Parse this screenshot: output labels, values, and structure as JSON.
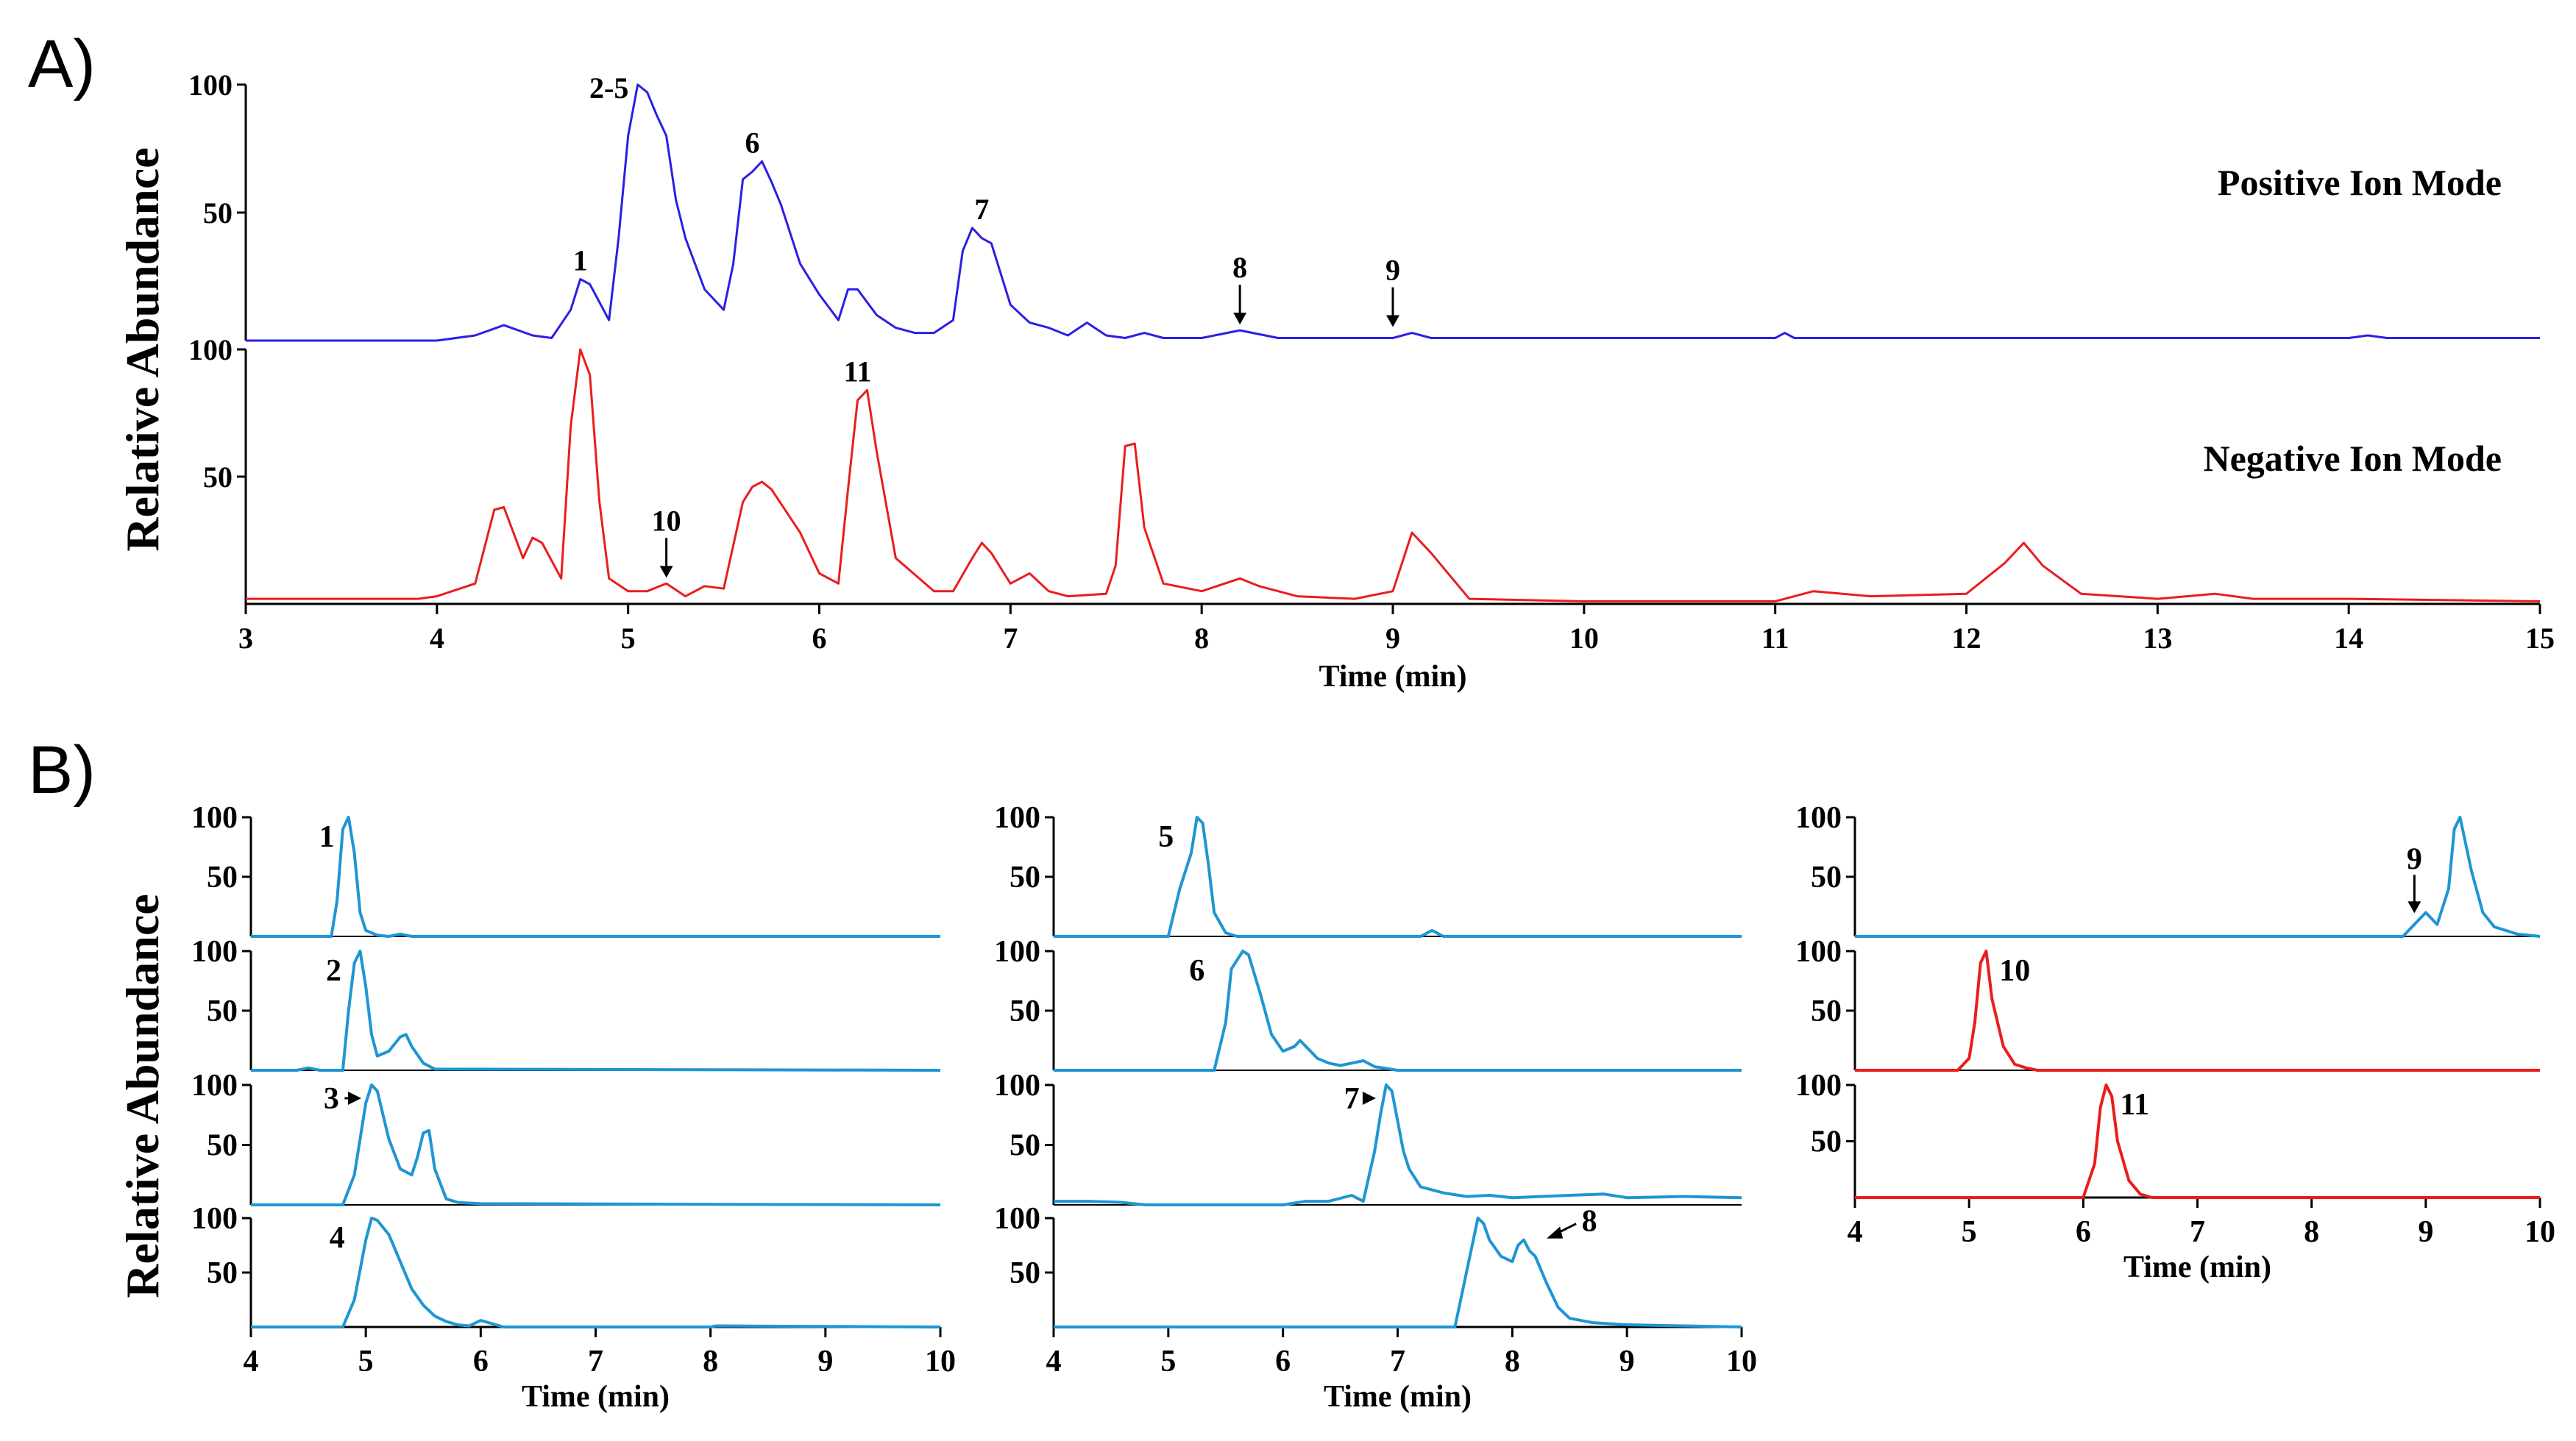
{
  "figure": {
    "panel_a_label": "A)",
    "panel_b_label": "B)",
    "ylabel_a": "Relative Abundance",
    "ylabel_b": "Relative Abundance"
  },
  "colors": {
    "positive": "#2b1fe6",
    "negative": "#ea1d1d",
    "eic_blue": "#1e96d3",
    "eic_red": "#ea1d1d",
    "axis": "#000000"
  },
  "chart_data": [
    {
      "id": "A-positive",
      "type": "line",
      "title": "Positive Ion Mode",
      "xlabel": "Time (min)",
      "ylabel": "Relative Abundance",
      "xlim": [
        3,
        15
      ],
      "ylim": [
        0,
        100
      ],
      "yticks": [
        "100",
        "50"
      ],
      "color": "positive",
      "series": [
        {
          "name": "Positive Ion Mode",
          "x": [
            3.0,
            3.5,
            4.0,
            4.2,
            4.35,
            4.5,
            4.6,
            4.7,
            4.75,
            4.8,
            4.9,
            4.95,
            5.0,
            5.05,
            5.1,
            5.15,
            5.2,
            5.25,
            5.3,
            5.4,
            5.5,
            5.55,
            5.6,
            5.65,
            5.7,
            5.75,
            5.8,
            5.9,
            6.0,
            6.1,
            6.15,
            6.2,
            6.3,
            6.4,
            6.5,
            6.6,
            6.7,
            6.75,
            6.8,
            6.85,
            6.9,
            7.0,
            7.1,
            7.2,
            7.3,
            7.4,
            7.5,
            7.6,
            7.7,
            7.8,
            8.0,
            8.2,
            8.4,
            9.0,
            9.1,
            9.2,
            10.0,
            11.0,
            11.05,
            11.1,
            12.0,
            14.0,
            14.1,
            14.2,
            14.5,
            15.0
          ],
          "y": [
            0,
            0,
            0,
            2,
            6,
            2,
            1,
            12,
            24,
            22,
            8,
            40,
            80,
            100,
            97,
            88,
            80,
            55,
            40,
            20,
            12,
            30,
            63,
            66,
            70,
            62,
            53,
            30,
            18,
            8,
            20,
            20,
            10,
            5,
            3,
            3,
            8,
            35,
            44,
            40,
            38,
            14,
            7,
            5,
            2,
            7,
            2,
            1,
            3,
            1,
            1,
            4,
            1,
            1,
            3,
            1,
            1,
            1,
            3,
            1,
            1,
            1,
            2,
            1,
            1,
            1
          ]
        }
      ],
      "annotations": [
        {
          "text": "1",
          "x": 4.75
        },
        {
          "text": "2-5",
          "x": 4.87
        },
        {
          "text": "6",
          "x": 5.65
        },
        {
          "text": "7",
          "x": 6.85
        },
        {
          "text": "8",
          "x": 8.2,
          "arrow": true
        },
        {
          "text": "9",
          "x": 9.0,
          "arrow": true
        }
      ]
    },
    {
      "id": "A-negative",
      "type": "line",
      "title": "Negative Ion Mode",
      "xlabel": "Time (min)",
      "ylabel": "Relative Abundance",
      "xlim": [
        3,
        15
      ],
      "ylim": [
        0,
        100
      ],
      "yticks": [
        "100",
        "50"
      ],
      "xticks": [
        3,
        4,
        5,
        6,
        7,
        8,
        9,
        10,
        11,
        12,
        13,
        14,
        15
      ],
      "color": "negative",
      "series": [
        {
          "name": "Negative Ion Mode",
          "x": [
            3.0,
            3.5,
            3.9,
            4.0,
            4.2,
            4.3,
            4.35,
            4.45,
            4.5,
            4.55,
            4.65,
            4.7,
            4.75,
            4.8,
            4.85,
            4.9,
            5.0,
            5.1,
            5.2,
            5.3,
            5.4,
            5.5,
            5.6,
            5.65,
            5.7,
            5.75,
            5.9,
            6.0,
            6.1,
            6.15,
            6.2,
            6.25,
            6.3,
            6.4,
            6.6,
            6.7,
            6.8,
            6.85,
            6.9,
            7.0,
            7.1,
            7.2,
            7.3,
            7.5,
            7.55,
            7.6,
            7.65,
            7.7,
            7.8,
            8.0,
            8.2,
            8.3,
            8.5,
            8.8,
            9.0,
            9.1,
            9.2,
            9.4,
            10.0,
            11.0,
            11.2,
            11.5,
            12.0,
            12.2,
            12.3,
            12.4,
            12.6,
            13.0,
            13.3,
            13.5,
            14.0,
            15.0
          ],
          "y": [
            2,
            2,
            2,
            3,
            8,
            37,
            38,
            18,
            26,
            24,
            10,
            70,
            100,
            90,
            40,
            10,
            5,
            5,
            8,
            3,
            7,
            6,
            40,
            46,
            48,
            45,
            28,
            12,
            8,
            45,
            80,
            84,
            60,
            18,
            5,
            5,
            18,
            24,
            20,
            8,
            12,
            5,
            3,
            4,
            15,
            62,
            63,
            30,
            8,
            5,
            10,
            7,
            3,
            2,
            5,
            28,
            20,
            2,
            1,
            1,
            5,
            3,
            4,
            16,
            24,
            15,
            4,
            2,
            4,
            2,
            2,
            1
          ]
        }
      ],
      "annotations": [
        {
          "text": "10",
          "x": 5.2,
          "arrow": true
        },
        {
          "text": "11",
          "x": 6.2
        }
      ]
    },
    {
      "id": "B-1",
      "type": "line",
      "xlim": [
        4,
        10
      ],
      "ylim": [
        0,
        100
      ],
      "yticks": [
        "100",
        "50"
      ],
      "color": "eic_blue",
      "series": [
        {
          "name": "1",
          "x": [
            4.0,
            4.5,
            4.7,
            4.75,
            4.8,
            4.85,
            4.9,
            4.95,
            5.0,
            5.1,
            5.2,
            5.3,
            5.35,
            5.4,
            10.0
          ],
          "y": [
            0,
            0,
            0,
            30,
            90,
            100,
            70,
            20,
            5,
            1,
            0,
            2,
            1,
            0,
            0
          ]
        }
      ],
      "annotations": [
        {
          "text": "1",
          "x": 4.66
        }
      ]
    },
    {
      "id": "B-2",
      "type": "line",
      "xlim": [
        4,
        10
      ],
      "ylim": [
        0,
        100
      ],
      "yticks": [
        "100",
        "50"
      ],
      "color": "eic_blue",
      "series": [
        {
          "name": "2",
          "x": [
            4.0,
            4.4,
            4.5,
            4.6,
            4.8,
            4.85,
            4.9,
            4.95,
            5.0,
            5.05,
            5.1,
            5.2,
            5.3,
            5.35,
            5.4,
            5.5,
            5.6,
            10.0
          ],
          "y": [
            0,
            0,
            2,
            0,
            0,
            50,
            90,
            100,
            70,
            30,
            12,
            16,
            28,
            30,
            20,
            6,
            1,
            0
          ]
        }
      ],
      "annotations": [
        {
          "text": "2",
          "x": 4.72
        }
      ]
    },
    {
      "id": "B-3",
      "type": "line",
      "xlim": [
        4,
        10
      ],
      "ylim": [
        0,
        100
      ],
      "yticks": [
        "100",
        "50"
      ],
      "color": "eic_blue",
      "series": [
        {
          "name": "3",
          "x": [
            4.0,
            4.8,
            4.9,
            5.0,
            5.05,
            5.1,
            5.15,
            5.2,
            5.3,
            5.4,
            5.45,
            5.5,
            5.55,
            5.6,
            5.7,
            5.8,
            6.0,
            10.0
          ],
          "y": [
            0,
            0,
            25,
            85,
            100,
            95,
            75,
            55,
            30,
            25,
            40,
            60,
            62,
            30,
            5,
            2,
            1,
            0
          ]
        }
      ],
      "annotations": [
        {
          "text": "3",
          "x": 4.7,
          "arrow": true
        }
      ]
    },
    {
      "id": "B-4",
      "type": "line",
      "xlim": [
        4,
        10
      ],
      "ylim": [
        0,
        100
      ],
      "yticks": [
        "100",
        "50"
      ],
      "color": "eic_blue",
      "xticks": [
        4,
        5,
        6,
        7,
        8,
        9,
        10
      ],
      "xlabel": "Time (min)",
      "series": [
        {
          "name": "4",
          "x": [
            4.0,
            4.8,
            4.9,
            5.0,
            5.05,
            5.1,
            5.2,
            5.3,
            5.4,
            5.5,
            5.6,
            5.7,
            5.8,
            5.9,
            6.0,
            6.1,
            6.2,
            8.0,
            8.05,
            10.0
          ],
          "y": [
            0,
            0,
            25,
            80,
            100,
            98,
            85,
            60,
            35,
            20,
            10,
            5,
            2,
            1,
            6,
            3,
            0,
            0,
            1,
            0
          ]
        }
      ],
      "annotations": [
        {
          "text": "4",
          "x": 4.75
        }
      ]
    },
    {
      "id": "B-5",
      "type": "line",
      "xlim": [
        4,
        10
      ],
      "ylim": [
        0,
        100
      ],
      "yticks": [
        "100",
        "50"
      ],
      "color": "eic_blue",
      "series": [
        {
          "name": "5",
          "x": [
            4.0,
            5.0,
            5.05,
            5.1,
            5.2,
            5.25,
            5.3,
            5.35,
            5.4,
            5.5,
            5.6,
            7.2,
            7.3,
            7.4,
            10.0
          ],
          "y": [
            0,
            0,
            20,
            40,
            70,
            100,
            95,
            60,
            20,
            3,
            0,
            0,
            5,
            0,
            0
          ]
        }
      ],
      "annotations": [
        {
          "text": "5",
          "x": 4.98
        }
      ]
    },
    {
      "id": "B-6",
      "type": "line",
      "xlim": [
        4,
        10
      ],
      "ylim": [
        0,
        100
      ],
      "yticks": [
        "100",
        "50"
      ],
      "color": "eic_blue",
      "series": [
        {
          "name": "6",
          "x": [
            4.0,
            5.4,
            5.5,
            5.55,
            5.65,
            5.7,
            5.8,
            5.9,
            6.0,
            6.1,
            6.15,
            6.2,
            6.3,
            6.4,
            6.5,
            6.6,
            6.7,
            6.8,
            7.0,
            10.0
          ],
          "y": [
            0,
            0,
            40,
            85,
            100,
            97,
            65,
            30,
            16,
            20,
            25,
            20,
            10,
            6,
            4,
            6,
            8,
            3,
            0,
            0
          ]
        }
      ],
      "annotations": [
        {
          "text": "6",
          "x": 5.25
        }
      ]
    },
    {
      "id": "B-7",
      "type": "line",
      "xlim": [
        4,
        10
      ],
      "ylim": [
        0,
        100
      ],
      "yticks": [
        "100",
        "50"
      ],
      "color": "eic_blue",
      "series": [
        {
          "name": "7",
          "x": [
            4.0,
            4.3,
            4.6,
            4.8,
            5.0,
            6.0,
            6.2,
            6.4,
            6.6,
            6.7,
            6.8,
            6.85,
            6.9,
            6.95,
            7.0,
            7.05,
            7.1,
            7.2,
            7.4,
            7.6,
            7.8,
            8.0,
            8.5,
            8.8,
            9.0,
            9.5,
            10.0
          ],
          "y": [
            3,
            3,
            2,
            0,
            0,
            0,
            3,
            3,
            8,
            3,
            45,
            75,
            100,
            95,
            70,
            45,
            30,
            15,
            10,
            7,
            8,
            6,
            8,
            9,
            6,
            7,
            6
          ]
        }
      ],
      "annotations": [
        {
          "text": "7",
          "x": 6.6,
          "arrow": true
        }
      ]
    },
    {
      "id": "B-8",
      "type": "line",
      "xlim": [
        4,
        10
      ],
      "ylim": [
        0,
        100
      ],
      "yticks": [
        "100",
        "50"
      ],
      "color": "eic_blue",
      "xticks": [
        4,
        5,
        6,
        7,
        8,
        9,
        10
      ],
      "xlabel": "Time (min)",
      "series": [
        {
          "name": "8",
          "x": [
            4.0,
            7.5,
            7.6,
            7.7,
            7.75,
            7.8,
            7.9,
            8.0,
            8.05,
            8.1,
            8.15,
            8.2,
            8.3,
            8.4,
            8.5,
            8.7,
            9.0,
            9.5,
            10.0
          ],
          "y": [
            0,
            0,
            50,
            100,
            95,
            80,
            65,
            60,
            75,
            80,
            70,
            65,
            40,
            18,
            8,
            4,
            2,
            1,
            0
          ]
        }
      ],
      "annotations": [
        {
          "text": "8",
          "x": 8.6,
          "arrow": true
        }
      ]
    },
    {
      "id": "B-9",
      "type": "line",
      "xlim": [
        4,
        10
      ],
      "ylim": [
        0,
        100
      ],
      "yticks": [
        "100",
        "50"
      ],
      "color": "eic_blue",
      "series": [
        {
          "name": "9",
          "x": [
            4.0,
            8.8,
            8.9,
            9.0,
            9.1,
            9.2,
            9.25,
            9.3,
            9.4,
            9.5,
            9.6,
            9.8,
            10.0
          ],
          "y": [
            0,
            0,
            10,
            20,
            10,
            40,
            90,
            100,
            55,
            20,
            8,
            2,
            0
          ]
        }
      ],
      "annotations": [
        {
          "text": "9",
          "x": 8.9,
          "arrow": true
        }
      ]
    },
    {
      "id": "B-10",
      "type": "line",
      "xlim": [
        4,
        10
      ],
      "ylim": [
        0,
        100
      ],
      "yticks": [
        "100",
        "50"
      ],
      "color": "eic_red",
      "series": [
        {
          "name": "10",
          "x": [
            4.0,
            4.9,
            5.0,
            5.05,
            5.1,
            5.15,
            5.2,
            5.3,
            5.4,
            5.5,
            5.6,
            10.0
          ],
          "y": [
            0,
            0,
            10,
            40,
            90,
            100,
            60,
            20,
            5,
            2,
            0,
            0
          ]
        }
      ],
      "annotations": [
        {
          "text": "10",
          "x": 5.4
        }
      ]
    },
    {
      "id": "B-11",
      "type": "line",
      "xlim": [
        4,
        10
      ],
      "ylim": [
        0,
        100
      ],
      "yticks": [
        "100",
        "50"
      ],
      "color": "eic_red",
      "xticks": [
        4,
        5,
        6,
        7,
        8,
        9,
        10
      ],
      "xlabel": "Time (min)",
      "series": [
        {
          "name": "11",
          "x": [
            4.0,
            6.0,
            6.1,
            6.15,
            6.2,
            6.25,
            6.3,
            6.4,
            6.5,
            6.6,
            10.0
          ],
          "y": [
            0,
            0,
            30,
            80,
            100,
            90,
            50,
            15,
            3,
            0,
            0
          ]
        }
      ],
      "annotations": [
        {
          "text": "11",
          "x": 6.45
        }
      ]
    }
  ]
}
